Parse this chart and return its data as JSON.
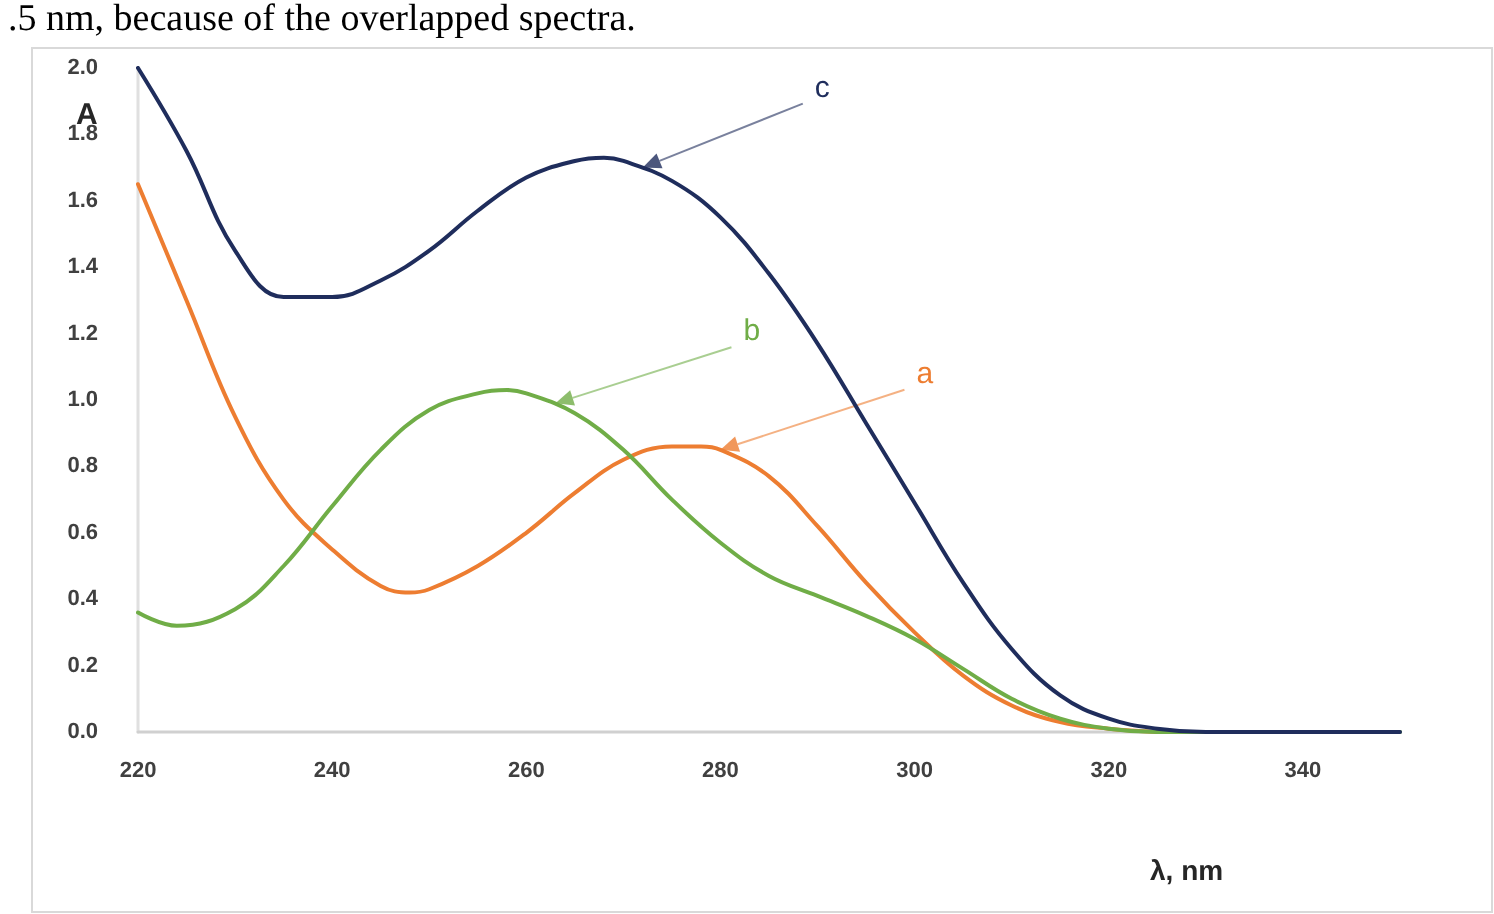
{
  "chart_data": {
    "type": "line",
    "xlabel": "λ, nm",
    "ylabel": "A",
    "annotations": [
      ".5 nm, because of the overlapped spectra.",
      {
        "text": "a",
        "x": 280,
        "y": 0.85
      },
      {
        "text": "b",
        "x": 263,
        "y": 0.99
      },
      {
        "text": "c",
        "x": 272,
        "y": 1.7
      }
    ],
    "xlim": [
      220,
      350
    ],
    "xticks": [
      220,
      240,
      260,
      280,
      300,
      320,
      340
    ],
    "ylim": [
      0,
      2
    ],
    "yticks": [
      {
        "value": 0,
        "label": "0.0"
      },
      {
        "value": 0.2,
        "label": "0.2"
      },
      {
        "value": 0.4,
        "label": "0.4"
      },
      {
        "value": 0.6,
        "label": "0.6"
      },
      {
        "value": 0.8,
        "label": "0.8"
      },
      {
        "value": 1,
        "label": "1.0"
      },
      {
        "value": 1.2,
        "label": "1.2"
      },
      {
        "value": 1.4,
        "label": "1.4"
      },
      {
        "value": 1.6,
        "label": "1.6"
      },
      {
        "value": 1.8,
        "label": "1.8"
      },
      {
        "value": 2,
        "label": "2.0"
      }
    ],
    "grid": false,
    "marker": "none",
    "line_style": "solid",
    "series": [
      {
        "color": "#ed7d31",
        "x": [
          220,
          225,
          230,
          235,
          240,
          245,
          248,
          250,
          255,
          260,
          265,
          270,
          275,
          278,
          280,
          285,
          290,
          295,
          300,
          305,
          310,
          315,
          320,
          325
        ],
        "values": [
          1.65,
          1.3,
          0.95,
          0.7,
          0.55,
          0.44,
          0.42,
          0.43,
          0.5,
          0.6,
          0.72,
          0.82,
          0.86,
          0.86,
          0.85,
          0.77,
          0.62,
          0.45,
          0.3,
          0.17,
          0.08,
          0.03,
          0.01,
          0
        ]
      },
      {
        "color": "#70ad47",
        "x": [
          220,
          224,
          230,
          235,
          240,
          245,
          250,
          255,
          258,
          260,
          265,
          270,
          275,
          280,
          285,
          290,
          295,
          300,
          305,
          310,
          315,
          320,
          325,
          330,
          340,
          350
        ],
        "values": [
          0.36,
          0.32,
          0.37,
          0.5,
          0.68,
          0.85,
          0.97,
          1.02,
          1.03,
          1.02,
          0.96,
          0.85,
          0.7,
          0.57,
          0.47,
          0.41,
          0.35,
          0.28,
          0.19,
          0.1,
          0.04,
          0.01,
          0,
          0,
          0,
          0
        ]
      },
      {
        "color": "#1f2d5c",
        "x": [
          220,
          225,
          230,
          235,
          240,
          245,
          250,
          255,
          260,
          265,
          268,
          270,
          275,
          280,
          285,
          290,
          295,
          300,
          305,
          310,
          315,
          320,
          325,
          330,
          340,
          350
        ],
        "values": [
          2.0,
          1.75,
          1.45,
          1.31,
          1.31,
          1.36,
          1.45,
          1.57,
          1.67,
          1.72,
          1.73,
          1.72,
          1.66,
          1.55,
          1.38,
          1.17,
          0.93,
          0.69,
          0.45,
          0.25,
          0.11,
          0.04,
          0.01,
          0,
          0,
          0
        ]
      }
    ]
  }
}
